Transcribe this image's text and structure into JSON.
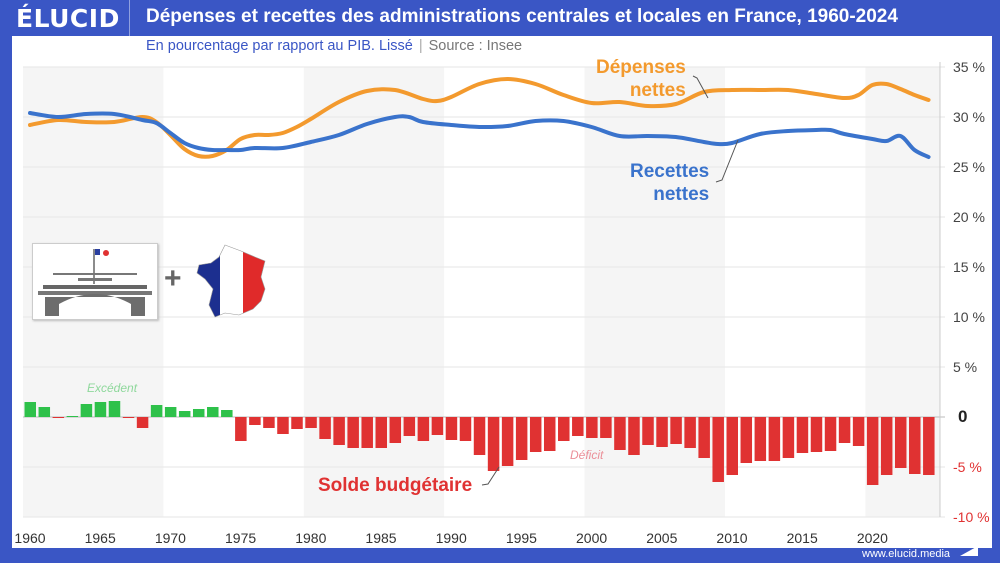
{
  "header": {
    "logo": "ÉLUCID",
    "title": "Dépenses et recettes des administrations centrales et locales en France, 1960-2024"
  },
  "subtitle": {
    "text": "En pourcentage par rapport au PIB. Lissé",
    "separator": "|",
    "source": "Source : Insee"
  },
  "footer": {
    "url": "www.elucid.media"
  },
  "colors": {
    "brand": "#3a56c5",
    "depenses": "#f39a2e",
    "recettes": "#3a73cc",
    "deficit": "#e03232",
    "excedent": "#2ec14a"
  },
  "chart_data": {
    "type": "line+bar",
    "title": "Dépenses et recettes des administrations centrales et locales en France, 1960-2024",
    "xlim": [
      1960,
      2024
    ],
    "ylim": [
      -10,
      35
    ],
    "x_ticks": [
      "1960",
      "1965",
      "1970",
      "1975",
      "1980",
      "1985",
      "1990",
      "1995",
      "2000",
      "2005",
      "2010",
      "2015",
      "2020"
    ],
    "y_ticks": [
      {
        "value": 35,
        "label": "35 %"
      },
      {
        "value": 30,
        "label": "30 %"
      },
      {
        "value": 25,
        "label": "25 %"
      },
      {
        "value": 20,
        "label": "20 %"
      },
      {
        "value": 15,
        "label": "15 %"
      },
      {
        "value": 10,
        "label": "10 %"
      },
      {
        "value": 5,
        "label": "5 %"
      },
      {
        "value": 0,
        "label": "0"
      },
      {
        "value": -5,
        "label": "-5 %"
      },
      {
        "value": -10,
        "label": "-10 %"
      }
    ],
    "grid": true,
    "series": [
      {
        "name": "Dépenses nettes",
        "kind": "line",
        "color": "#f39a2e",
        "points": [
          [
            1960,
            29.2
          ],
          [
            1962,
            29.7
          ],
          [
            1964,
            29.5
          ],
          [
            1966,
            29.5
          ],
          [
            1968,
            30.0
          ],
          [
            1969,
            29.5
          ],
          [
            1970,
            28.2
          ],
          [
            1971,
            26.8
          ],
          [
            1972,
            26.1
          ],
          [
            1973,
            26.1
          ],
          [
            1974,
            26.7
          ],
          [
            1975,
            27.8
          ],
          [
            1976,
            28.2
          ],
          [
            1977,
            28.2
          ],
          [
            1978,
            28.4
          ],
          [
            1979,
            29.0
          ],
          [
            1980,
            29.8
          ],
          [
            1982,
            31.5
          ],
          [
            1984,
            32.6
          ],
          [
            1986,
            32.7
          ],
          [
            1988,
            31.8
          ],
          [
            1989,
            31.6
          ],
          [
            1990,
            32.0
          ],
          [
            1992,
            33.3
          ],
          [
            1994,
            33.8
          ],
          [
            1996,
            33.3
          ],
          [
            1998,
            32.2
          ],
          [
            2000,
            31.4
          ],
          [
            2002,
            31.5
          ],
          [
            2004,
            31.1
          ],
          [
            2006,
            31.3
          ],
          [
            2008,
            32.5
          ],
          [
            2010,
            32.7
          ],
          [
            2012,
            32.7
          ],
          [
            2014,
            32.7
          ],
          [
            2016,
            32.3
          ],
          [
            2018,
            31.9
          ],
          [
            2019,
            32.2
          ],
          [
            2020,
            33.2
          ],
          [
            2021,
            33.3
          ],
          [
            2022,
            32.8
          ],
          [
            2023,
            32.2
          ],
          [
            2024,
            31.7
          ]
        ]
      },
      {
        "name": "Recettes nettes",
        "kind": "line",
        "color": "#3a73cc",
        "points": [
          [
            1960,
            30.4
          ],
          [
            1962,
            30.0
          ],
          [
            1964,
            30.3
          ],
          [
            1966,
            30.3
          ],
          [
            1968,
            29.7
          ],
          [
            1969,
            29.4
          ],
          [
            1970,
            28.4
          ],
          [
            1971,
            27.4
          ],
          [
            1972,
            26.9
          ],
          [
            1973,
            26.7
          ],
          [
            1974,
            26.7
          ],
          [
            1975,
            26.7
          ],
          [
            1976,
            26.9
          ],
          [
            1978,
            26.9
          ],
          [
            1980,
            27.5
          ],
          [
            1982,
            28.2
          ],
          [
            1984,
            29.3
          ],
          [
            1986,
            30.0
          ],
          [
            1987,
            30.0
          ],
          [
            1988,
            29.5
          ],
          [
            1990,
            29.2
          ],
          [
            1992,
            29.0
          ],
          [
            1994,
            29.1
          ],
          [
            1996,
            29.6
          ],
          [
            1998,
            29.6
          ],
          [
            2000,
            29.0
          ],
          [
            2002,
            28.1
          ],
          [
            2004,
            28.1
          ],
          [
            2006,
            28.0
          ],
          [
            2008,
            27.5
          ],
          [
            2009,
            27.3
          ],
          [
            2010,
            27.4
          ],
          [
            2012,
            28.3
          ],
          [
            2014,
            28.6
          ],
          [
            2016,
            28.7
          ],
          [
            2017,
            28.7
          ],
          [
            2018,
            28.3
          ],
          [
            2020,
            27.8
          ],
          [
            2021,
            27.6
          ],
          [
            2022,
            28.1
          ],
          [
            2023,
            26.7
          ],
          [
            2024,
            26.0
          ]
        ]
      },
      {
        "name": "Solde budgétaire",
        "kind": "bar",
        "years": [
          1960,
          1961,
          1962,
          1963,
          1964,
          1965,
          1966,
          1967,
          1968,
          1969,
          1970,
          1971,
          1972,
          1973,
          1974,
          1975,
          1976,
          1977,
          1978,
          1979,
          1980,
          1981,
          1982,
          1983,
          1984,
          1985,
          1986,
          1987,
          1988,
          1989,
          1990,
          1991,
          1992,
          1993,
          1994,
          1995,
          1996,
          1997,
          1998,
          1999,
          2000,
          2001,
          2002,
          2003,
          2004,
          2005,
          2006,
          2007,
          2008,
          2009,
          2010,
          2011,
          2012,
          2013,
          2014,
          2015,
          2016,
          2017,
          2018,
          2019,
          2020,
          2021,
          2022,
          2023,
          2024
        ],
        "values": [
          1.5,
          1.0,
          -0.1,
          0.1,
          1.3,
          1.5,
          1.6,
          -0.1,
          -1.1,
          1.2,
          1.0,
          0.6,
          0.8,
          1.0,
          0.7,
          -2.4,
          -0.8,
          -1.1,
          -1.7,
          -1.2,
          -1.1,
          -2.2,
          -2.8,
          -3.1,
          -3.1,
          -3.1,
          -2.6,
          -1.9,
          -2.4,
          -1.8,
          -2.3,
          -2.4,
          -3.8,
          -5.4,
          -4.9,
          -4.3,
          -3.5,
          -3.4,
          -2.4,
          -1.9,
          -2.1,
          -2.1,
          -3.3,
          -3.8,
          -2.8,
          -3.0,
          -2.7,
          -3.1,
          -4.1,
          -6.5,
          -5.8,
          -4.6,
          -4.4,
          -4.4,
          -4.1,
          -3.6,
          -3.5,
          -3.4,
          -2.6,
          -2.9,
          -6.8,
          -5.8,
          -5.1,
          -5.7,
          -5.8
        ]
      }
    ],
    "annotations": {
      "depenses": [
        "Dépenses",
        "nettes"
      ],
      "recettes": [
        "Recettes",
        "nettes"
      ],
      "solde": "Solde budgétaire",
      "excedent": "Excédent",
      "deficit": "Déficit"
    }
  }
}
